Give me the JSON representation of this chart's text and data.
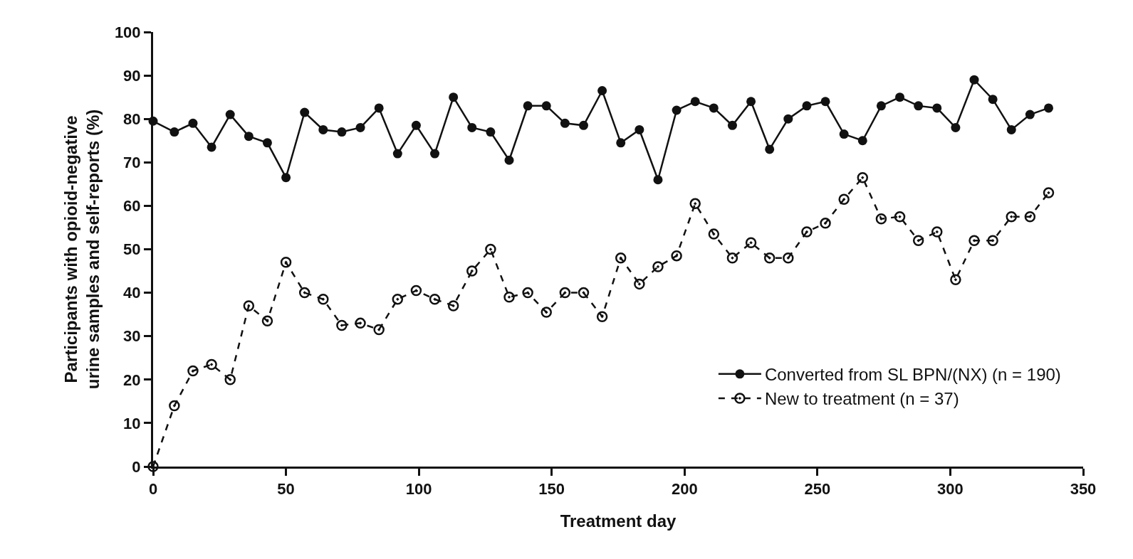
{
  "chart_data": {
    "type": "line",
    "xlabel": "Treatment day",
    "ylabel": "Participants with opioid-negative\nurine samples and self-reports (%)",
    "x": [
      0,
      8,
      15,
      22,
      29,
      36,
      43,
      50,
      57,
      64,
      71,
      78,
      85,
      92,
      99,
      106,
      113,
      120,
      127,
      134,
      141,
      148,
      155,
      162,
      169,
      176,
      183,
      190,
      197,
      204,
      211,
      218,
      225,
      232,
      239,
      246,
      253,
      260,
      267,
      274,
      281,
      288,
      295,
      302,
      309,
      316,
      323,
      330,
      337
    ],
    "series": [
      {
        "name": "Converted from SL BPN/(NX) (n = 190)",
        "color": "#111111",
        "marker": "circle",
        "line_style": "solid",
        "values": [
          79.5,
          77,
          79,
          73.5,
          81,
          76,
          74.5,
          66.5,
          81.5,
          77.5,
          77,
          78,
          82.5,
          72,
          78.5,
          72,
          85,
          78,
          77,
          70.5,
          83,
          83,
          79,
          78.5,
          86.5,
          74.5,
          77.5,
          66,
          82,
          84,
          82.5,
          78.5,
          84,
          73,
          80,
          83,
          84,
          76.5,
          75,
          83,
          85,
          83,
          82.5,
          78,
          89,
          84.5,
          77.5,
          81,
          82.5
        ]
      },
      {
        "name": "New to treatment (n = 37)",
        "color": "#111111",
        "marker": "circle-open",
        "line_style": "dashed",
        "values": [
          0,
          14,
          22,
          23.5,
          20,
          37,
          33.5,
          47,
          40,
          38.5,
          32.5,
          33,
          31.5,
          38.5,
          40.5,
          38.5,
          37,
          45,
          50,
          39,
          40,
          35.5,
          40,
          40,
          34.5,
          48,
          42,
          46,
          48.5,
          60.5,
          53.5,
          48,
          51.5,
          48,
          48,
          54,
          56,
          61.5,
          66.5,
          57,
          57.5,
          52,
          54,
          43,
          52,
          52,
          57.5,
          57.5,
          63
        ]
      }
    ],
    "xlim": [
      0,
      350
    ],
    "xticks": [
      0,
      50,
      100,
      150,
      200,
      250,
      300,
      350
    ],
    "ylim": [
      0,
      100
    ],
    "yticks": [
      0,
      10,
      20,
      30,
      40,
      50,
      60,
      70,
      80,
      90,
      100
    ],
    "legend": "bottom right"
  }
}
